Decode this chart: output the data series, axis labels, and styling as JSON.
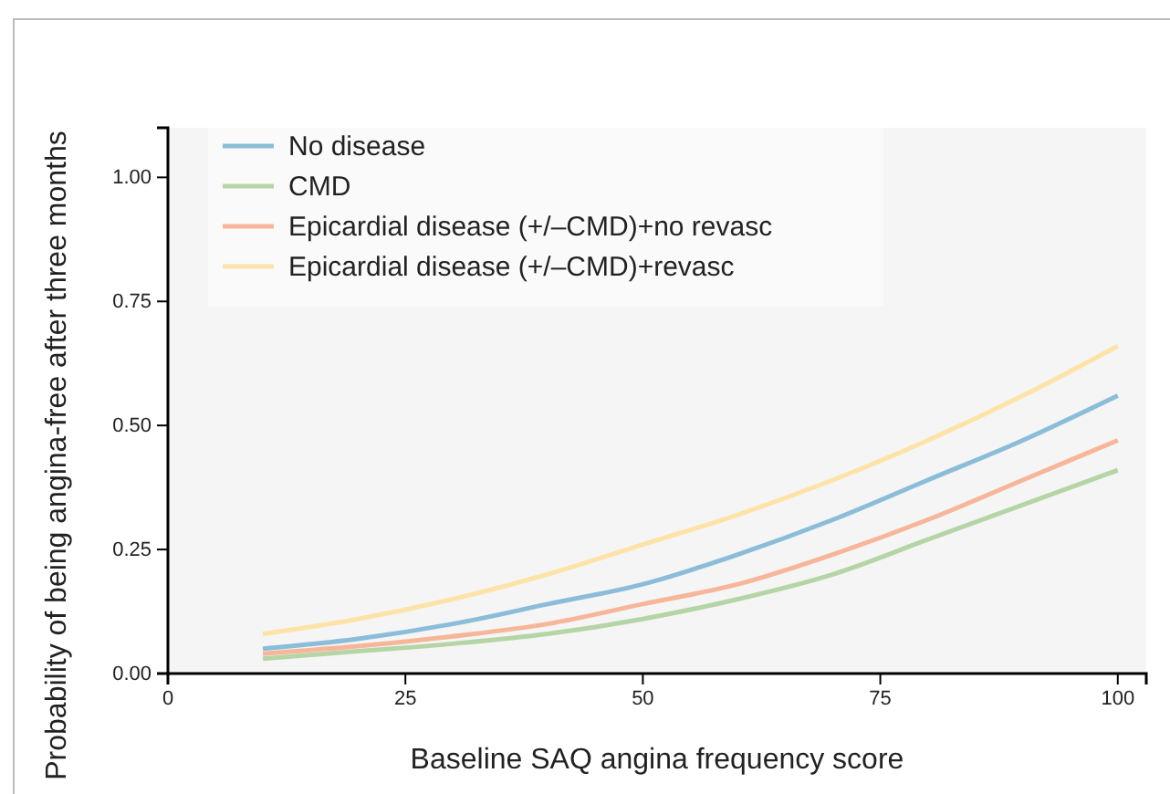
{
  "chart_data": {
    "type": "line",
    "xlabel": "Baseline SAQ angina frequency score",
    "ylabel": "Probability of being angina-free after three months",
    "x": [
      10,
      20,
      30,
      40,
      50,
      60,
      70,
      80,
      90,
      100
    ],
    "series": [
      {
        "name": "No disease",
        "color": "#8bbdd9",
        "values": [
          0.05,
          0.07,
          0.1,
          0.14,
          0.18,
          0.24,
          0.31,
          0.39,
          0.47,
          0.56
        ]
      },
      {
        "name": "CMD",
        "color": "#b5d5a7",
        "values": [
          0.03,
          0.045,
          0.06,
          0.08,
          0.11,
          0.15,
          0.2,
          0.27,
          0.34,
          0.41
        ]
      },
      {
        "name": "Epicardial disease (+/–CMD)+no revasc",
        "color": "#f7b69a",
        "values": [
          0.04,
          0.055,
          0.075,
          0.1,
          0.14,
          0.18,
          0.24,
          0.31,
          0.39,
          0.47
        ]
      },
      {
        "name": "Epicardial disease (+/–CMD)+revasc",
        "color": "#fde3a7",
        "values": [
          0.08,
          0.11,
          0.15,
          0.2,
          0.26,
          0.32,
          0.39,
          0.47,
          0.56,
          0.66
        ]
      }
    ],
    "xlim": [
      0,
      103
    ],
    "ylim": [
      0,
      1.1
    ],
    "xticks": [
      0,
      25,
      50,
      75,
      100
    ],
    "yticks": [
      {
        "value": 0,
        "label": "0.00"
      },
      {
        "value": 0.25,
        "label": "0.25"
      },
      {
        "value": 0.5,
        "label": "0.50"
      },
      {
        "value": 0.75,
        "label": "0.75"
      },
      {
        "value": 1,
        "label": "1.00"
      }
    ],
    "grid": false,
    "legend": "top left",
    "marker": "none",
    "line_style": "solid"
  }
}
